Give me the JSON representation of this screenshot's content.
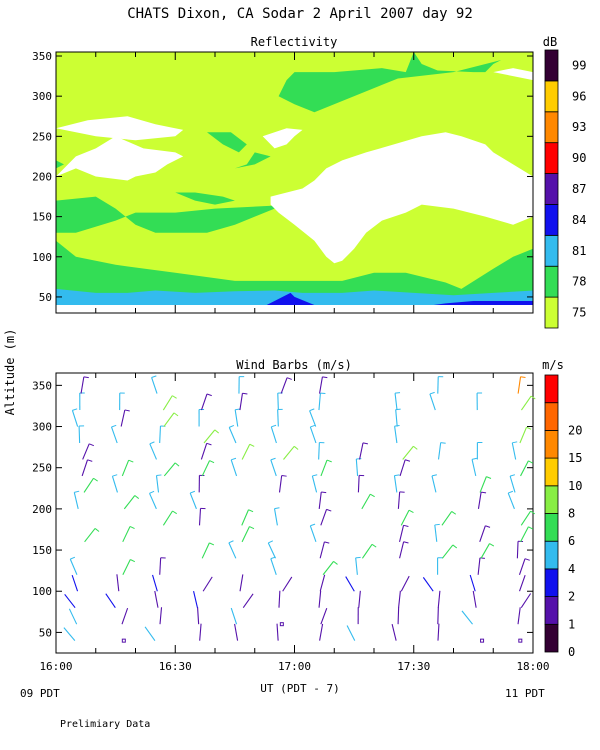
{
  "header": {
    "title": "CHATS Dixon, CA  Sodar    2 April 2007   day  92"
  },
  "footer": {
    "note": "Prelimiary Data"
  },
  "axes": {
    "ylabel": "Altitude (m)",
    "xlabel": "UT  (PDT - 7)",
    "left_local": "09 PDT",
    "right_local": "11 PDT",
    "x_ticks": [
      {
        "t": 0,
        "label": "16:00"
      },
      {
        "t": 30,
        "label": "16:30"
      },
      {
        "t": 60,
        "label": "17:00"
      },
      {
        "t": 90,
        "label": "17:30"
      },
      {
        "t": 120,
        "label": "18:00"
      }
    ],
    "y_ticks": [
      50,
      100,
      150,
      200,
      250,
      300,
      350
    ],
    "colors": {
      "frame": "#000000"
    }
  },
  "chart_data": [
    {
      "type": "heatmap",
      "title": "Reflectivity",
      "units": "dB",
      "xlim": [
        0,
        120
      ],
      "ylim": [
        30,
        355
      ],
      "color_levels": [
        {
          "label": "75",
          "color": "#ccff33"
        },
        {
          "label": "78",
          "color": "#33dd55"
        },
        {
          "label": "81",
          "color": "#33bbee"
        },
        {
          "label": "84",
          "color": "#1111ee"
        },
        {
          "label": "87",
          "color": "#5511aa"
        },
        {
          "label": "90",
          "color": "#ff0000"
        },
        {
          "label": "93",
          "color": "#ff8800"
        },
        {
          "label": "96",
          "color": "#ffcc00"
        },
        {
          "label": "99",
          "color": "#330033"
        }
      ],
      "regions": [
        {
          "level": "75",
          "polygon": [
            [
              0,
              40
            ],
            [
              120,
              40
            ],
            [
              120,
              355
            ],
            [
              0,
              355
            ]
          ]
        },
        {
          "level": "78",
          "polygon": [
            [
              60,
              330
            ],
            [
              70,
              330
            ],
            [
              82,
              335
            ],
            [
              88,
              330
            ],
            [
              90,
              355
            ],
            [
              92,
              340
            ],
            [
              96,
              332
            ],
            [
              105,
              330
            ],
            [
              108,
              330
            ],
            [
              110,
              340
            ],
            [
              112,
              345
            ],
            [
              100,
              330
            ],
            [
              86,
              322
            ],
            [
              80,
              310
            ],
            [
              65,
              280
            ],
            [
              60,
              290
            ],
            [
              56,
              300
            ],
            [
              58,
              320
            ]
          ]
        },
        {
          "level": "78",
          "polygon": [
            [
              0,
              40
            ],
            [
              120,
              40
            ],
            [
              120,
              110
            ],
            [
              115,
              100
            ],
            [
              110,
              85
            ],
            [
              102,
              60
            ],
            [
              98,
              68
            ],
            [
              88,
              80
            ],
            [
              80,
              80
            ],
            [
              72,
              70
            ],
            [
              60,
              70
            ],
            [
              45,
              70
            ],
            [
              30,
              80
            ],
            [
              15,
              90
            ],
            [
              5,
              100
            ],
            [
              0,
              120
            ]
          ]
        },
        {
          "level": "78",
          "polygon": [
            [
              0,
              170
            ],
            [
              10,
              175
            ],
            [
              15,
              160
            ],
            [
              20,
              140
            ],
            [
              25,
              130
            ],
            [
              38,
              130
            ],
            [
              45,
              140
            ],
            [
              50,
              150
            ],
            [
              55,
              160
            ],
            [
              60,
              165
            ],
            [
              40,
              160
            ],
            [
              30,
              155
            ],
            [
              20,
              155
            ],
            [
              15,
              145
            ],
            [
              5,
              130
            ],
            [
              0,
              130
            ]
          ]
        },
        {
          "level": "78",
          "polygon": [
            [
              38,
              255
            ],
            [
              42,
              240
            ],
            [
              46,
              230
            ],
            [
              48,
              240
            ],
            [
              44,
              255
            ]
          ]
        },
        {
          "level": "78",
          "polygon": [
            [
              45,
              210
            ],
            [
              50,
              215
            ],
            [
              52,
              220
            ],
            [
              54,
              225
            ],
            [
              50,
              230
            ],
            [
              48,
              215
            ]
          ]
        },
        {
          "level": "78",
          "polygon": [
            [
              30,
              180
            ],
            [
              35,
              170
            ],
            [
              40,
              165
            ],
            [
              45,
              170
            ],
            [
              42,
              175
            ],
            [
              35,
              180
            ]
          ]
        },
        {
          "level": "78",
          "polygon": [
            [
              0,
              220
            ],
            [
              2,
              215
            ],
            [
              0,
              210
            ]
          ]
        },
        {
          "level": "81",
          "polygon": [
            [
              0,
              40
            ],
            [
              120,
              40
            ],
            [
              120,
              58
            ],
            [
              110,
              55
            ],
            [
              100,
              52
            ],
            [
              90,
              55
            ],
            [
              80,
              58
            ],
            [
              72,
              55
            ],
            [
              62,
              55
            ],
            [
              55,
              58
            ],
            [
              45,
              57
            ],
            [
              35,
              55
            ],
            [
              25,
              58
            ],
            [
              18,
              55
            ],
            [
              10,
              55
            ],
            [
              0,
              60
            ]
          ]
        },
        {
          "level": "84",
          "polygon": [
            [
              53,
              40
            ],
            [
              65,
              40
            ],
            [
              60,
              50
            ],
            [
              59,
              55
            ],
            [
              57,
              50
            ]
          ]
        },
        {
          "level": "84",
          "polygon": [
            [
              95,
              40
            ],
            [
              120,
              40
            ],
            [
              120,
              45
            ],
            [
              105,
              45
            ],
            [
              98,
              42
            ]
          ]
        },
        {
          "level": "blank",
          "polygon": [
            [
              0,
              200
            ],
            [
              5,
              225
            ],
            [
              10,
              235
            ],
            [
              15,
              250
            ],
            [
              22,
              235
            ],
            [
              30,
              230
            ],
            [
              32,
              225
            ],
            [
              28,
              215
            ],
            [
              25,
              205
            ],
            [
              20,
              200
            ],
            [
              18,
              195
            ],
            [
              10,
              200
            ],
            [
              5,
              210
            ]
          ]
        },
        {
          "level": "blank",
          "polygon": [
            [
              0,
              260
            ],
            [
              8,
              270
            ],
            [
              18,
              275
            ],
            [
              25,
              265
            ],
            [
              32,
              258
            ],
            [
              30,
              250
            ],
            [
              20,
              245
            ],
            [
              10,
              250
            ],
            [
              5,
              255
            ]
          ]
        },
        {
          "level": "blank",
          "polygon": [
            [
              52,
              250
            ],
            [
              55,
              255
            ],
            [
              58,
              260
            ],
            [
              62,
              258
            ],
            [
              60,
              250
            ],
            [
              58,
              240
            ],
            [
              55,
              235
            ]
          ]
        },
        {
          "level": "blank",
          "polygon": [
            [
              54,
              175
            ],
            [
              62,
              185
            ],
            [
              65,
              195
            ],
            [
              68,
              210
            ],
            [
              72,
              220
            ],
            [
              78,
              230
            ],
            [
              85,
              240
            ],
            [
              92,
              250
            ],
            [
              98,
              255
            ],
            [
              102,
              250
            ],
            [
              108,
              240
            ],
            [
              110,
              230
            ],
            [
              115,
              215
            ],
            [
              120,
              200
            ],
            [
              120,
              150
            ],
            [
              115,
              140
            ],
            [
              108,
              150
            ],
            [
              100,
              160
            ],
            [
              92,
              165
            ],
            [
              90,
              160
            ],
            [
              88,
              155
            ],
            [
              82,
              145
            ],
            [
              78,
              130
            ],
            [
              75,
              110
            ],
            [
              72,
              95
            ],
            [
              70,
              92
            ],
            [
              68,
              100
            ],
            [
              65,
              120
            ],
            [
              60,
              140
            ],
            [
              56,
              155
            ],
            [
              54,
              165
            ]
          ]
        },
        {
          "level": "blank",
          "polygon": [
            [
              110,
              330
            ],
            [
              115,
              325
            ],
            [
              120,
              320
            ],
            [
              120,
              330
            ],
            [
              115,
              335
            ]
          ]
        }
      ]
    },
    {
      "type": "scatter",
      "title": "Wind Barbs (m/s)",
      "units": "m/s",
      "xlim": [
        0,
        120
      ],
      "ylim": [
        25,
        365
      ],
      "color_levels": [
        {
          "label": "0",
          "color": "#330033"
        },
        {
          "label": "1",
          "color": "#5511aa"
        },
        {
          "label": "2",
          "color": "#1111ee"
        },
        {
          "label": "4",
          "color": "#33bbee"
        },
        {
          "label": "6",
          "color": "#33dd55"
        },
        {
          "label": "8",
          "color": "#88ee44"
        },
        {
          "label": "10",
          "color": "#ffcc00"
        },
        {
          "label": "15",
          "color": "#ff8800"
        },
        {
          "label": "20",
          "color": "#ff6600"
        },
        {
          "label": "",
          "color": "#ff0000"
        }
      ],
      "columns_t": [
        6,
        16,
        26,
        36,
        46,
        56,
        66,
        76,
        86,
        96,
        106,
        116
      ],
      "heights_m": [
        40,
        60,
        80,
        100,
        120,
        140,
        160,
        180,
        200,
        220,
        240,
        260,
        280,
        300,
        320,
        340,
        360
      ]
    }
  ]
}
